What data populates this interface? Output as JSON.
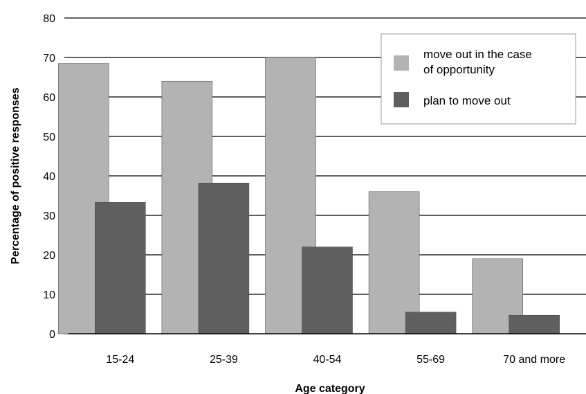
{
  "chart_data": {
    "type": "bar",
    "title": "",
    "xlabel": "Age category",
    "ylabel": "Percentage of positive responses",
    "ylim": [
      0,
      80
    ],
    "yticks": [
      0,
      10,
      20,
      30,
      40,
      50,
      60,
      70,
      80
    ],
    "grid": true,
    "legend_position": "top-right",
    "categories": [
      "15-24",
      "25-39",
      "40-54",
      "55-69",
      "70 and more"
    ],
    "series": [
      {
        "name": "move out in the case of opportunity",
        "color": "#b3b3b3",
        "values": [
          68.5,
          64,
          70,
          36,
          19
        ]
      },
      {
        "name": "plan to move out",
        "color": "#5f5f5f",
        "values": [
          33.3,
          38.2,
          22,
          5.5,
          4.7
        ]
      }
    ],
    "legend": {
      "line1": [
        "move out in the case",
        "of opportunity"
      ],
      "line2": [
        "plan to move out"
      ]
    }
  }
}
